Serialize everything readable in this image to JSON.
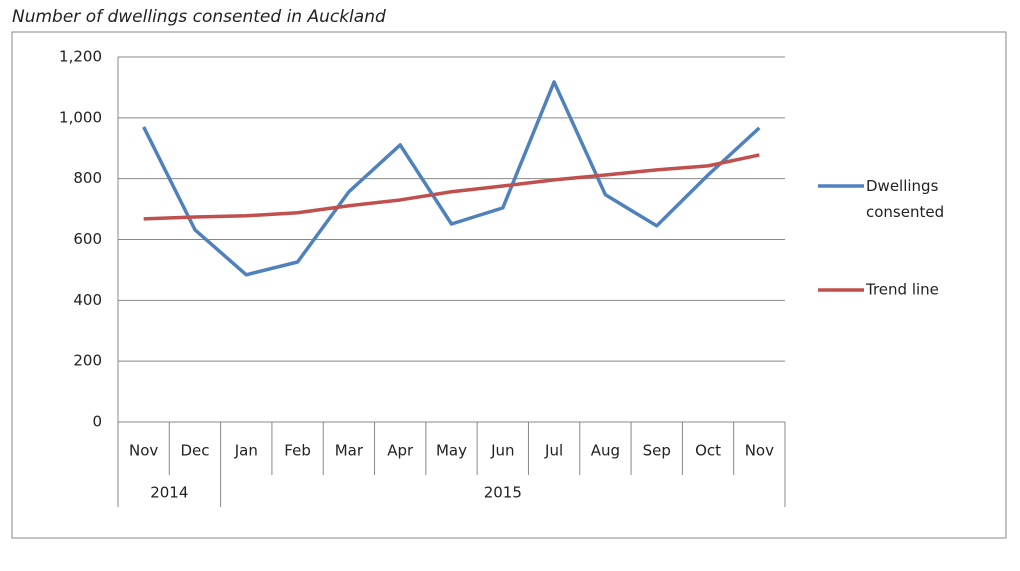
{
  "chart_data": {
    "type": "line",
    "title": "Number of dwellings consented in Auckland",
    "categories": [
      "Nov",
      "Dec",
      "Jan",
      "Feb",
      "Mar",
      "Apr",
      "May",
      "Jun",
      "Jul",
      "Aug",
      "Sep",
      "Oct",
      "Nov"
    ],
    "groups": [
      {
        "label": "2014",
        "months": 2
      },
      {
        "label": "2015",
        "months": 11
      }
    ],
    "series": [
      {
        "name": "Dwellings consented",
        "color": "#4f81bd",
        "values": [
          970,
          632,
          484,
          526,
          757,
          911,
          651,
          704,
          1118,
          747,
          645,
          812,
          967
        ]
      },
      {
        "name": "Trend line",
        "color": "#c0504d",
        "values": [
          668,
          674,
          678,
          688,
          711,
          730,
          757,
          776,
          796,
          812,
          829,
          842,
          878
        ]
      }
    ],
    "ylim": [
      0,
      1200
    ],
    "yticks": [
      0,
      200,
      400,
      600,
      800,
      {
        "value": 1000,
        "label": "1,000"
      },
      {
        "value": 1200,
        "label": "1,200"
      }
    ],
    "grid": true,
    "legend": "right"
  }
}
